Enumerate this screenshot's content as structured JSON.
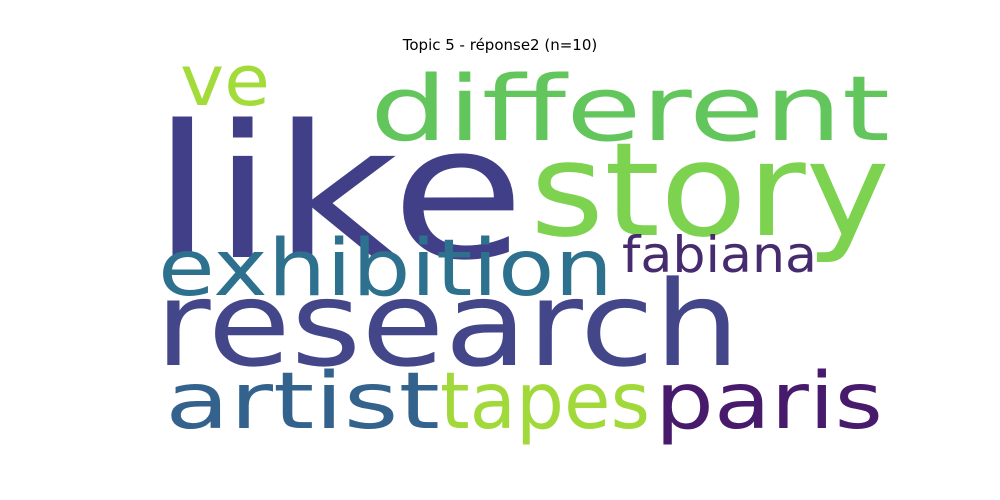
{
  "chart_data": {
    "type": "wordcloud",
    "title": "Topic 5 - réponse2 (n=10)",
    "words": [
      {
        "text": "like",
        "color": "#413f87"
      },
      {
        "text": "research",
        "color": "#44468a"
      },
      {
        "text": "story",
        "color": "#7dd250"
      },
      {
        "text": "different",
        "color": "#63c65c"
      },
      {
        "text": "exhibition",
        "color": "#2d718e"
      },
      {
        "text": "artist",
        "color": "#33638d"
      },
      {
        "text": "tapes",
        "color": "#a2d93a"
      },
      {
        "text": "paris",
        "color": "#481a6c"
      },
      {
        "text": "fabiana",
        "color": "#462b6f"
      },
      {
        "text": "ve",
        "color": "#a3db3a"
      }
    ]
  }
}
